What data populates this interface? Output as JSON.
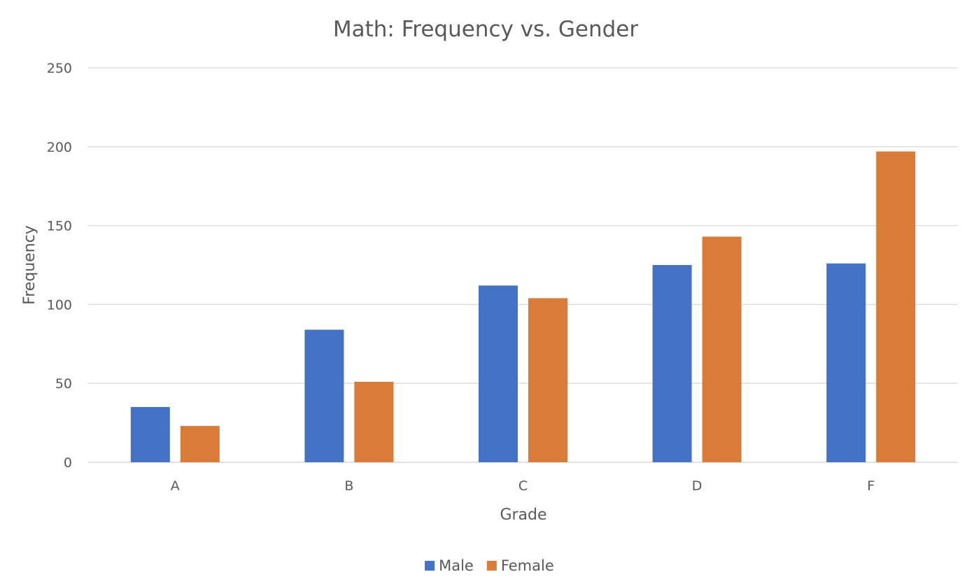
{
  "chart_data": {
    "type": "bar",
    "title": "Math: Frequency vs. Gender",
    "xlabel": "Grade",
    "ylabel": "Frequency",
    "categories": [
      "A",
      "B",
      "C",
      "D",
      "F"
    ],
    "series": [
      {
        "name": "Male",
        "color": "#4472c4",
        "values": [
          35,
          84,
          112,
          125,
          126
        ]
      },
      {
        "name": "Female",
        "color": "#d97b39",
        "values": [
          23,
          51,
          104,
          143,
          197
        ]
      }
    ],
    "ylim": [
      0,
      250
    ],
    "yticks": [
      0,
      50,
      100,
      150,
      200,
      250
    ],
    "grid": true,
    "legend": "bottom-center"
  }
}
